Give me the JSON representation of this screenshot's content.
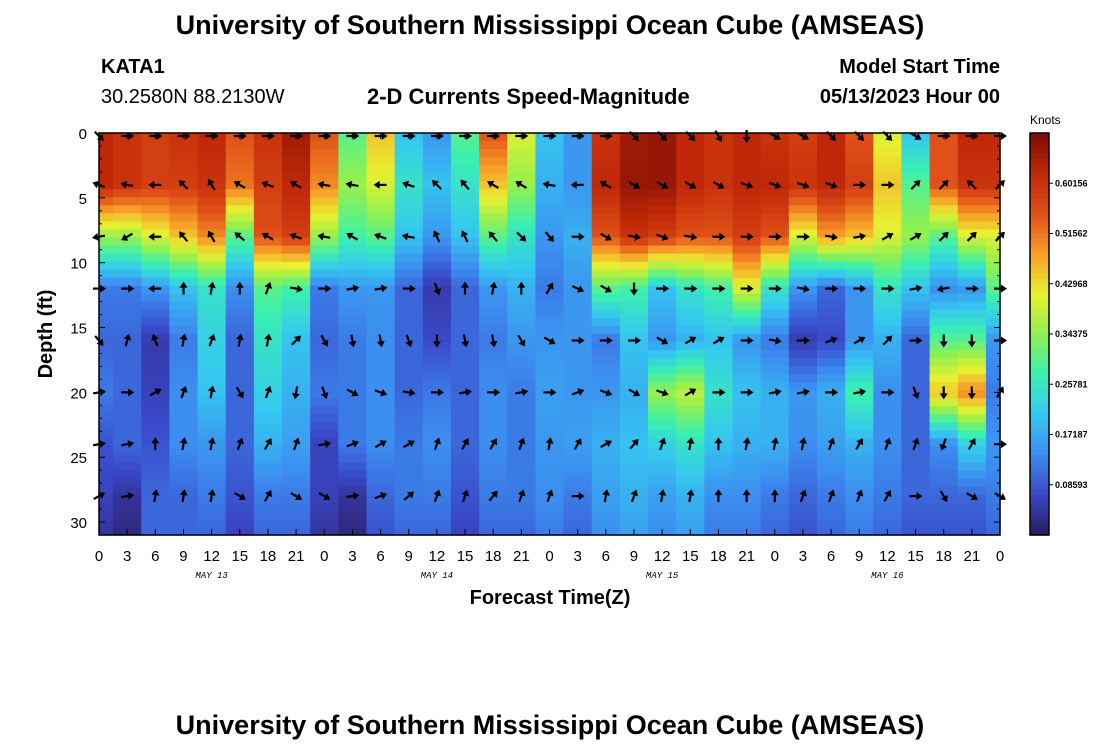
{
  "header": {
    "title": "University of Southern Mississippi Ocean Cube (AMSEAS)",
    "station": "KATA1",
    "coords": "30.2580N  88.2130W",
    "subtitle": "2-D Currents Speed-Magnitude",
    "model_start_label": "Model Start Time",
    "model_start_value": "05/13/2023 Hour 00"
  },
  "footer": {
    "title": "University of Southern Mississippi Ocean Cube (AMSEAS)"
  },
  "chart_data": {
    "type": "heatmap",
    "xlabel": "Forecast Time(Z)",
    "ylabel": "Depth (ft)",
    "x_tick_labels": [
      "0",
      "3",
      "6",
      "9",
      "12",
      "15",
      "18",
      "21",
      "0",
      "3",
      "6",
      "9",
      "12",
      "15",
      "18",
      "21",
      "0",
      "3",
      "6",
      "9",
      "12",
      "15",
      "18",
      "21",
      "0",
      "3",
      "6",
      "9",
      "12",
      "15",
      "18",
      "21",
      "0"
    ],
    "date_labels": [
      "MAY 13",
      "MAY 14",
      "MAY 15",
      "MAY 16"
    ],
    "ylim": [
      0,
      31
    ],
    "y_ticks": [
      0,
      5,
      10,
      15,
      20,
      25,
      30
    ],
    "colorbar": {
      "unit": "Knots",
      "tick_labels": [
        "0.60156",
        "0.51562",
        "0.42968",
        "0.34375",
        "0.25781",
        "0.17187",
        "0.08593"
      ],
      "range": [
        0,
        0.6875
      ]
    },
    "colormap": [
      "#2b1a5e",
      "#3a48c8",
      "#3c8cf0",
      "#35c8f0",
      "#3af0b0",
      "#90f050",
      "#e8f030",
      "#f8a028",
      "#e05018",
      "#c02808",
      "#7a0c04"
    ],
    "depths": [
      0,
      4,
      8,
      12,
      16,
      20,
      24,
      28,
      31
    ],
    "speed_grid": [
      [
        0.62,
        0.6,
        0.58,
        0.6,
        0.62,
        0.55,
        0.6,
        0.65,
        0.55,
        0.3,
        0.45,
        0.2,
        0.15,
        0.3,
        0.55,
        0.4,
        0.2,
        0.15,
        0.6,
        0.65,
        0.66,
        0.62,
        0.6,
        0.62,
        0.6,
        0.58,
        0.62,
        0.55,
        0.4,
        0.2,
        0.55,
        0.62,
        0.62
      ],
      [
        0.62,
        0.6,
        0.58,
        0.58,
        0.6,
        0.52,
        0.58,
        0.62,
        0.5,
        0.35,
        0.4,
        0.25,
        0.2,
        0.25,
        0.45,
        0.35,
        0.18,
        0.15,
        0.62,
        0.66,
        0.66,
        0.62,
        0.6,
        0.62,
        0.62,
        0.6,
        0.62,
        0.58,
        0.45,
        0.3,
        0.55,
        0.6,
        0.6
      ],
      [
        0.35,
        0.35,
        0.4,
        0.45,
        0.5,
        0.3,
        0.55,
        0.58,
        0.35,
        0.28,
        0.3,
        0.2,
        0.15,
        0.2,
        0.3,
        0.25,
        0.15,
        0.18,
        0.55,
        0.6,
        0.58,
        0.55,
        0.55,
        0.58,
        0.55,
        0.4,
        0.48,
        0.45,
        0.4,
        0.35,
        0.3,
        0.4,
        0.4
      ],
      [
        0.12,
        0.12,
        0.15,
        0.2,
        0.25,
        0.14,
        0.3,
        0.28,
        0.12,
        0.15,
        0.15,
        0.1,
        0.05,
        0.1,
        0.15,
        0.18,
        0.12,
        0.15,
        0.3,
        0.28,
        0.2,
        0.25,
        0.28,
        0.4,
        0.25,
        0.15,
        0.1,
        0.15,
        0.25,
        0.2,
        0.14,
        0.15,
        0.3
      ],
      [
        0.1,
        0.1,
        0.05,
        0.12,
        0.22,
        0.1,
        0.25,
        0.2,
        0.1,
        0.12,
        0.14,
        0.1,
        0.07,
        0.1,
        0.12,
        0.15,
        0.15,
        0.15,
        0.12,
        0.2,
        0.15,
        0.18,
        0.2,
        0.15,
        0.12,
        0.05,
        0.07,
        0.15,
        0.18,
        0.1,
        0.3,
        0.3,
        0.15
      ],
      [
        0.12,
        0.1,
        0.06,
        0.14,
        0.2,
        0.1,
        0.22,
        0.18,
        0.12,
        0.12,
        0.14,
        0.1,
        0.12,
        0.1,
        0.14,
        0.12,
        0.16,
        0.15,
        0.15,
        0.18,
        0.35,
        0.38,
        0.25,
        0.2,
        0.18,
        0.15,
        0.18,
        0.28,
        0.14,
        0.1,
        0.45,
        0.5,
        0.12
      ],
      [
        0.08,
        0.1,
        0.08,
        0.14,
        0.15,
        0.1,
        0.18,
        0.16,
        0.06,
        0.12,
        0.14,
        0.12,
        0.14,
        0.1,
        0.14,
        0.12,
        0.15,
        0.16,
        0.18,
        0.2,
        0.22,
        0.25,
        0.2,
        0.18,
        0.18,
        0.14,
        0.16,
        0.18,
        0.14,
        0.1,
        0.14,
        0.22,
        0.15
      ],
      [
        0.06,
        0.04,
        0.1,
        0.1,
        0.12,
        0.08,
        0.12,
        0.12,
        0.06,
        0.04,
        0.1,
        0.12,
        0.12,
        0.08,
        0.12,
        0.12,
        0.14,
        0.12,
        0.16,
        0.18,
        0.16,
        0.18,
        0.14,
        0.14,
        0.12,
        0.1,
        0.12,
        0.14,
        0.12,
        0.1,
        0.1,
        0.1,
        0.12
      ],
      [
        0.04,
        0.02,
        0.1,
        0.1,
        0.1,
        0.06,
        0.1,
        0.1,
        0.04,
        0.02,
        0.08,
        0.1,
        0.1,
        0.06,
        0.1,
        0.1,
        0.12,
        0.1,
        0.14,
        0.16,
        0.14,
        0.16,
        0.12,
        0.12,
        0.1,
        0.08,
        0.1,
        0.12,
        0.1,
        0.08,
        0.08,
        0.08,
        0.1
      ]
    ],
    "arrow_depths": [
      0,
      4,
      8,
      12,
      16,
      20,
      24,
      28
    ],
    "arrow_directions_deg": [
      [
        135,
        90,
        90,
        90,
        90,
        90,
        90,
        90,
        90,
        90,
        90,
        90,
        90,
        90,
        90,
        90,
        90,
        90,
        90,
        135,
        135,
        135,
        150,
        180,
        120,
        120,
        135,
        135,
        135,
        120,
        90,
        90,
        90
      ],
      [
        290,
        280,
        270,
        315,
        330,
        300,
        290,
        300,
        280,
        280,
        270,
        290,
        315,
        320,
        300,
        300,
        280,
        270,
        300,
        120,
        120,
        120,
        120,
        110,
        110,
        110,
        110,
        90,
        90,
        45,
        45,
        315,
        45
      ],
      [
        260,
        240,
        270,
        320,
        330,
        310,
        300,
        290,
        280,
        300,
        290,
        280,
        335,
        335,
        320,
        135,
        140,
        90,
        120,
        100,
        110,
        100,
        90,
        90,
        90,
        90,
        100,
        80,
        60,
        60,
        45,
        45,
        45
      ],
      [
        90,
        90,
        270,
        0,
        10,
        0,
        20,
        100,
        90,
        80,
        80,
        90,
        160,
        0,
        10,
        0,
        30,
        115,
        120,
        180,
        90,
        90,
        90,
        90,
        90,
        100,
        90,
        90,
        90,
        80,
        260,
        90,
        90
      ],
      [
        140,
        15,
        340,
        10,
        20,
        10,
        10,
        45,
        150,
        170,
        170,
        160,
        180,
        170,
        170,
        150,
        120,
        90,
        90,
        90,
        120,
        60,
        60,
        90,
        100,
        90,
        70,
        60,
        45,
        90,
        180,
        180,
        90
      ],
      [
        80,
        90,
        60,
        20,
        10,
        150,
        20,
        190,
        160,
        120,
        110,
        100,
        90,
        80,
        90,
        80,
        90,
        70,
        110,
        120,
        110,
        60,
        90,
        90,
        80,
        80,
        90,
        80,
        90,
        160,
        180,
        180,
        30
      ],
      [
        80,
        80,
        0,
        10,
        10,
        20,
        30,
        20,
        80,
        70,
        60,
        60,
        20,
        30,
        30,
        20,
        10,
        30,
        60,
        40,
        20,
        10,
        0,
        10,
        10,
        10,
        20,
        30,
        20,
        20,
        200,
        30,
        90
      ],
      [
        60,
        80,
        10,
        10,
        10,
        120,
        30,
        120,
        120,
        80,
        70,
        50,
        20,
        20,
        40,
        20,
        20,
        90,
        10,
        20,
        10,
        10,
        0,
        0,
        0,
        20,
        20,
        20,
        30,
        90,
        150,
        120,
        120
      ]
    ]
  }
}
